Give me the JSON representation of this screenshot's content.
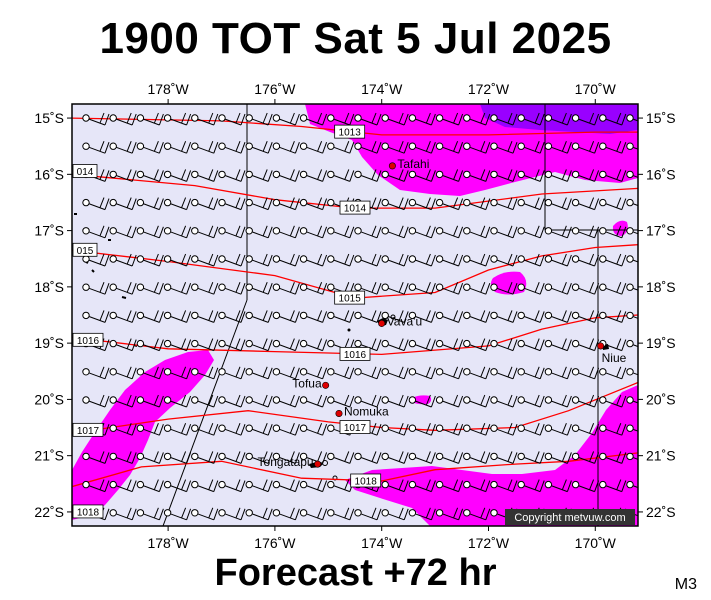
{
  "title": "1900 TOT Sat 5 Jul 2025",
  "footer": "Forecast +72 hr",
  "model_label": "M3",
  "copyright": "Copyright metvuw.com",
  "map": {
    "lon_range": [
      -179.8,
      -169.2
    ],
    "lat_range": [
      -22.25,
      -14.75
    ],
    "colors": {
      "ocean": "#e6e6f8",
      "rain_light": "#ff00ff",
      "rain_heavy": "#9900ff",
      "isobar": "#ff0000",
      "place_marker": "#dd0000"
    },
    "lon_ticks": [
      {
        "lon": -178,
        "label": "178˚W"
      },
      {
        "lon": -176,
        "label": "176˚W"
      },
      {
        "lon": -174,
        "label": "174˚W"
      },
      {
        "lon": -172,
        "label": "172˚W"
      },
      {
        "lon": -170,
        "label": "170˚W"
      }
    ],
    "lat_ticks": [
      {
        "lat": -15,
        "label": "15˚S"
      },
      {
        "lat": -16,
        "label": "16˚S"
      },
      {
        "lat": -17,
        "label": "17˚S"
      },
      {
        "lat": -18,
        "label": "18˚S"
      },
      {
        "lat": -19,
        "label": "19˚S"
      },
      {
        "lat": -20,
        "label": "20˚S"
      },
      {
        "lat": -21,
        "label": "21˚S"
      },
      {
        "lat": -22,
        "label": "22˚S"
      }
    ],
    "places": [
      {
        "name": "Tafahi",
        "lon": -173.8,
        "lat": -15.85
      },
      {
        "name": "Vava'u",
        "lon": -174.0,
        "lat": -18.65
      },
      {
        "name": "Niue",
        "lon": -169.9,
        "lat": -19.05
      },
      {
        "name": "Tofua",
        "lon": -175.05,
        "lat": -19.75
      },
      {
        "name": "Nomuka",
        "lon": -174.8,
        "lat": -20.25
      },
      {
        "name": "Tongatapu",
        "lon": -175.2,
        "lat": -21.15
      }
    ],
    "isobars": [
      {
        "label": "1013",
        "label_lon": -174.6,
        "label_lat": -15.25,
        "points": [
          [
            -179.8,
            -15.0
          ],
          [
            -177.0,
            -15.05
          ],
          [
            -175.5,
            -15.15
          ],
          [
            -174.0,
            -15.3
          ],
          [
            -172.0,
            -15.3
          ],
          [
            -170.0,
            -15.25
          ],
          [
            -169.2,
            -15.25
          ]
        ]
      },
      {
        "label": "1014",
        "label_lon": -174.5,
        "label_lat": -16.6,
        "points": [
          [
            -179.8,
            -16.0
          ],
          [
            -177.5,
            -16.2
          ],
          [
            -176.0,
            -16.45
          ],
          [
            -174.5,
            -16.6
          ],
          [
            -173.0,
            -16.6
          ],
          [
            -171.0,
            -16.35
          ],
          [
            -169.2,
            -16.25
          ]
        ]
      },
      {
        "label": "1015",
        "label_lon": -174.6,
        "label_lat": -18.2,
        "points": [
          [
            -179.8,
            -17.35
          ],
          [
            -178.0,
            -17.55
          ],
          [
            -176.0,
            -17.8
          ],
          [
            -174.5,
            -18.2
          ],
          [
            -173.0,
            -18.1
          ],
          [
            -172.0,
            -17.7
          ],
          [
            -171.0,
            -17.45
          ],
          [
            -170.0,
            -17.3
          ],
          [
            -169.2,
            -17.25
          ]
        ]
      },
      {
        "label": "1016",
        "label_lon": -174.5,
        "label_lat": -19.2,
        "points": [
          [
            -179.8,
            -18.9
          ],
          [
            -178.0,
            -19.1
          ],
          [
            -176.0,
            -19.15
          ],
          [
            -174.0,
            -19.2
          ],
          [
            -172.0,
            -19.05
          ],
          [
            -171.0,
            -18.75
          ],
          [
            -170.0,
            -18.55
          ],
          [
            -169.2,
            -18.5
          ]
        ]
      },
      {
        "label": "1017",
        "label_lon": -174.5,
        "label_lat": -20.5,
        "points": [
          [
            -179.8,
            -20.6
          ],
          [
            -178.0,
            -20.35
          ],
          [
            -176.5,
            -20.2
          ],
          [
            -175.0,
            -20.4
          ],
          [
            -174.0,
            -20.5
          ],
          [
            -173.0,
            -20.55
          ],
          [
            -171.5,
            -20.5
          ],
          [
            -170.5,
            -20.2
          ],
          [
            -169.2,
            -19.7
          ]
        ]
      },
      {
        "label": "1018",
        "label_lon": -174.3,
        "label_lat": -21.45,
        "points": [
          [
            -179.8,
            -21.55
          ],
          [
            -178.5,
            -21.2
          ],
          [
            -177.0,
            -21.1
          ],
          [
            -175.5,
            -21.4
          ],
          [
            -174.0,
            -21.45
          ],
          [
            -173.0,
            -21.25
          ],
          [
            -171.5,
            -21.15
          ],
          [
            -170.5,
            -21.1
          ],
          [
            -169.2,
            -20.95
          ]
        ]
      }
    ],
    "edge_isobar_labels": [
      {
        "label": "014",
        "lat": -15.95
      },
      {
        "label": "015",
        "lat": -17.35
      },
      {
        "label": "1016",
        "lat": -18.95
      },
      {
        "label": "1017",
        "lat": -20.55
      },
      {
        "label": "1018",
        "lat": -22.0
      }
    ]
  }
}
